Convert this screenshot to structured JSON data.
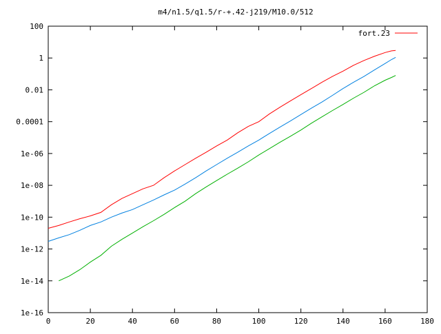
{
  "chart_data": {
    "type": "line",
    "title": "m4/n1.5/q1.5/r-+.42-j219/M10.0/512",
    "xlabel": "",
    "ylabel": "",
    "xlim": [
      0,
      180
    ],
    "ylim": [
      1e-16,
      100
    ],
    "y_scale": "log",
    "grid": false,
    "legend_position": "top-right",
    "x_ticks": [
      0,
      20,
      40,
      60,
      80,
      100,
      120,
      140,
      160,
      180
    ],
    "x_tick_labels": [
      "0",
      "20",
      "40",
      "60",
      "80",
      "100",
      "120",
      "140",
      "160",
      "180"
    ],
    "y_ticks": [
      1e-16,
      1e-14,
      1e-12,
      1e-10,
      1e-08,
      1e-06,
      0.0001,
      0.01,
      1,
      100
    ],
    "y_tick_labels": [
      "1e-16",
      "1e-14",
      "1e-12",
      "1e-10",
      "1e-08",
      "1e-06",
      "0.0001",
      "0.01",
      "1",
      "100"
    ],
    "colors": {
      "red": "#ff0000",
      "blue": "#0080e0",
      "green": "#00b000"
    },
    "legend": [
      {
        "label": "fort.23",
        "color": "#ff0000"
      }
    ],
    "series": [
      {
        "name": "fort.23",
        "color": "#ff0000",
        "x": [
          0,
          5,
          10,
          15,
          20,
          25,
          30,
          35,
          40,
          45,
          50,
          55,
          60,
          65,
          70,
          75,
          80,
          85,
          90,
          95,
          100,
          105,
          110,
          115,
          120,
          125,
          130,
          135,
          140,
          145,
          150,
          155,
          160,
          163,
          165
        ],
        "y": [
          2e-11,
          3e-11,
          5e-11,
          8e-11,
          1.2e-10,
          2e-10,
          6e-10,
          1.5e-09,
          3e-09,
          6e-09,
          1e-08,
          3e-08,
          8e-08,
          2e-07,
          5e-07,
          1.2e-06,
          3e-06,
          7e-06,
          2e-05,
          5e-05,
          0.0001,
          0.0003,
          0.0008,
          0.002,
          0.005,
          0.012,
          0.03,
          0.07,
          0.15,
          0.35,
          0.7,
          1.3,
          2.2,
          2.8,
          3.0
        ]
      },
      {
        "color": "#0080e0",
        "x": [
          0,
          5,
          10,
          15,
          20,
          25,
          30,
          35,
          40,
          45,
          50,
          55,
          60,
          65,
          70,
          75,
          80,
          85,
          90,
          95,
          100,
          105,
          110,
          115,
          120,
          125,
          130,
          135,
          140,
          145,
          150,
          155,
          160,
          163,
          165
        ],
        "y": [
          3e-12,
          5e-12,
          8e-12,
          1.5e-11,
          3e-11,
          5e-11,
          1e-10,
          1.8e-10,
          3e-10,
          6e-10,
          1.2e-09,
          2.5e-09,
          5e-09,
          1.2e-08,
          3e-08,
          8e-08,
          2e-07,
          5e-07,
          1.2e-06,
          3e-06,
          7e-06,
          1.8e-05,
          4.5e-05,
          0.00011,
          0.00028,
          0.0007,
          0.0017,
          0.0045,
          0.012,
          0.03,
          0.07,
          0.18,
          0.45,
          0.8,
          1.1
        ]
      },
      {
        "color": "#00b000",
        "x": [
          5,
          10,
          15,
          20,
          25,
          30,
          35,
          40,
          45,
          50,
          55,
          60,
          65,
          70,
          75,
          80,
          85,
          90,
          95,
          100,
          105,
          110,
          115,
          120,
          125,
          130,
          135,
          140,
          145,
          150,
          155,
          160,
          163,
          165
        ],
        "y": [
          1e-14,
          2e-14,
          5e-14,
          1.5e-13,
          4e-13,
          1.5e-12,
          4e-12,
          1e-11,
          2.5e-11,
          6e-11,
          1.5e-10,
          4e-10,
          1e-09,
          3e-09,
          8e-09,
          2e-08,
          5e-08,
          1.2e-07,
          3e-07,
          8e-07,
          2e-06,
          5e-06,
          1.2e-05,
          3e-05,
          8e-05,
          0.0002,
          0.0005,
          0.0012,
          0.003,
          0.007,
          0.018,
          0.04,
          0.06,
          0.08
        ]
      }
    ]
  }
}
